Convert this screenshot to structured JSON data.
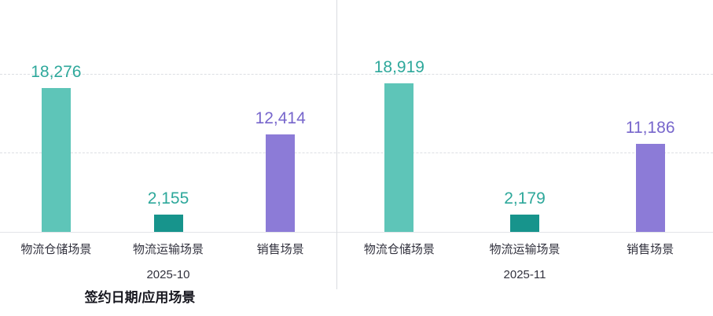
{
  "chart_data": {
    "type": "bar",
    "xlabel": "签约日期/应用场景",
    "ylim": [
      0,
      20000
    ],
    "gridline_values": [
      10000,
      20000
    ],
    "grid_style": "dashed",
    "legend_position": "none",
    "groups": [
      {
        "label": "2025-10",
        "categories": [
          "物流仓储场景",
          "物流运输场景",
          "销售场景"
        ],
        "values": [
          18276,
          2155,
          12414
        ],
        "value_labels": [
          "18,276",
          "2,155",
          "12,414"
        ]
      },
      {
        "label": "2025-11",
        "categories": [
          "物流仓储场景",
          "物流运输场景",
          "销售场景"
        ],
        "values": [
          18919,
          2179,
          11186
        ],
        "value_labels": [
          "18,919",
          "2,179",
          "11,186"
        ]
      }
    ],
    "bar_colors": [
      "#5ec5b8",
      "#17948c",
      "#8c7bd7"
    ],
    "value_label_colors": [
      "#2ea89b",
      "#2ea89b",
      "#7766cc"
    ],
    "axis_line_color": "#e2e4e8",
    "gridline_color": "#dcdfe3"
  }
}
